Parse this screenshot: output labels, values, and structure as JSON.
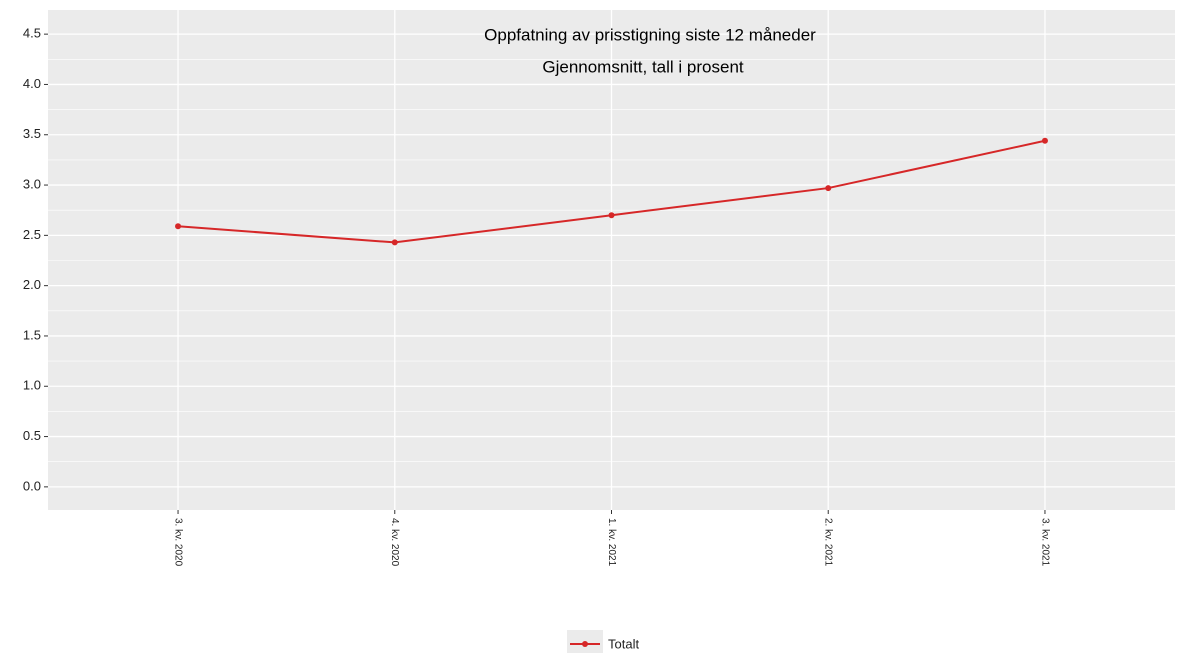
{
  "chart_data": {
    "type": "line",
    "title": "Oppfatning av prisstigning siste 12 måneder",
    "subtitle": "Gjennomsnitt, tall i prosent",
    "categories": [
      "3. kv. 2020",
      "4. kv. 2020",
      "1. kv. 2021",
      "2. kv. 2021",
      "3. kv. 2021"
    ],
    "series": [
      {
        "name": "Totalt",
        "color": "#d62728",
        "values": [
          2.59,
          2.43,
          2.7,
          2.97,
          3.44
        ]
      }
    ],
    "ylim": [
      -0.23,
      4.74
    ],
    "yticks": [
      {
        "value": 0,
        "label": "0.0"
      },
      0.5,
      {
        "value": 1,
        "label": "1.0"
      },
      1.5,
      {
        "value": 2,
        "label": "2.0"
      },
      2.5,
      {
        "value": 3,
        "label": "3.0"
      },
      3.5,
      {
        "value": 4,
        "label": "4.0"
      },
      4.5
    ],
    "grid": true,
    "legend": "bottom"
  }
}
